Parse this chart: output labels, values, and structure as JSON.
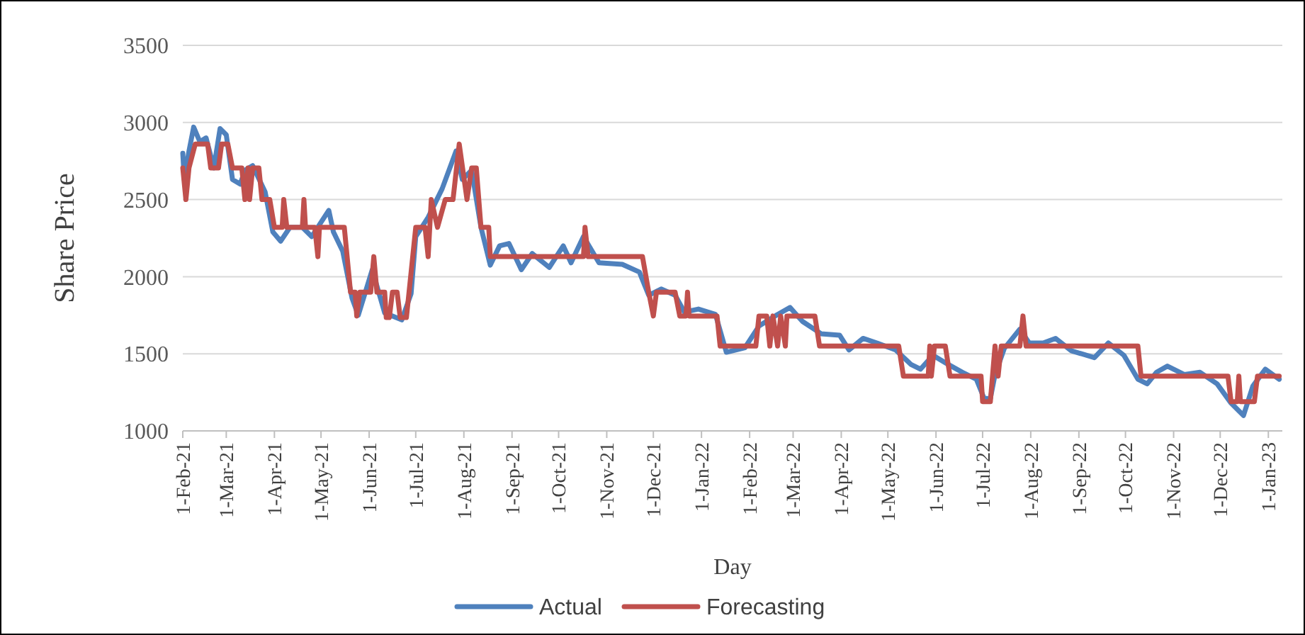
{
  "chart_data": {
    "type": "line",
    "xlabel": "Day",
    "ylabel": "Share Price",
    "xlim": [
      "2021-02-01",
      "2023-01-10"
    ],
    "ylim": [
      1000,
      3500
    ],
    "yticks": [
      1000,
      1500,
      2000,
      2500,
      3000,
      3500
    ],
    "xticks": [
      {
        "value": "2021-02-01",
        "label": "1-Feb-21"
      },
      {
        "value": "2021-03-01",
        "label": "1-Mar-21"
      },
      {
        "value": "2021-04-01",
        "label": "1-Apr-21"
      },
      {
        "value": "2021-05-01",
        "label": "1-May-21"
      },
      {
        "value": "2021-06-01",
        "label": "1-Jun-21"
      },
      {
        "value": "2021-07-01",
        "label": "1-Jul-21"
      },
      {
        "value": "2021-08-01",
        "label": "1-Aug-21"
      },
      {
        "value": "2021-09-01",
        "label": "1-Sep-21"
      },
      {
        "value": "2021-10-01",
        "label": "1-Oct-21"
      },
      {
        "value": "2021-11-01",
        "label": "1-Nov-21"
      },
      {
        "value": "2021-12-01",
        "label": "1-Dec-21"
      },
      {
        "value": "2022-01-01",
        "label": "1-Jan-22"
      },
      {
        "value": "2022-02-01",
        "label": "1-Feb-22"
      },
      {
        "value": "2022-03-01",
        "label": "1-Mar-22"
      },
      {
        "value": "2022-04-01",
        "label": "1-Apr-22"
      },
      {
        "value": "2022-05-01",
        "label": "1-May-22"
      },
      {
        "value": "2022-06-01",
        "label": "1-Jun-22"
      },
      {
        "value": "2022-07-01",
        "label": "1-Jul-22"
      },
      {
        "value": "2022-08-01",
        "label": "1-Aug-22"
      },
      {
        "value": "2022-09-01",
        "label": "1-Sep-22"
      },
      {
        "value": "2022-10-01",
        "label": "1-Oct-22"
      },
      {
        "value": "2022-11-01",
        "label": "1-Nov-22"
      },
      {
        "value": "2022-12-01",
        "label": "1-Dec-22"
      },
      {
        "value": "2023-01-01",
        "label": "1-Jan-23"
      }
    ],
    "grid": "y",
    "legend": "bottom",
    "marker": "none",
    "line_style": "solid",
    "series": [
      {
        "name": "Actual",
        "color": "#4f81bd",
        "x": [
          "2021-02-01",
          "2021-02-02",
          "2021-02-05",
          "2021-02-08",
          "2021-02-12",
          "2021-02-16",
          "2021-02-21",
          "2021-02-25",
          "2021-03-01",
          "2021-03-05",
          "2021-03-10",
          "2021-03-13",
          "2021-03-18",
          "2021-03-26",
          "2021-03-31",
          "2021-04-05",
          "2021-04-11",
          "2021-04-19",
          "2021-04-25",
          "2021-05-06",
          "2021-05-09",
          "2021-05-15",
          "2021-05-21",
          "2021-05-25",
          "2021-06-03",
          "2021-06-11",
          "2021-06-22",
          "2021-06-28",
          "2021-07-01",
          "2021-07-09",
          "2021-07-18",
          "2021-07-27",
          "2021-07-31",
          "2021-08-06",
          "2021-08-12",
          "2021-08-18",
          "2021-08-24",
          "2021-08-30",
          "2021-09-07",
          "2021-09-14",
          "2021-09-25",
          "2021-10-04",
          "2021-10-09",
          "2021-10-17",
          "2021-10-27",
          "2021-11-11",
          "2021-11-22",
          "2021-11-28",
          "2021-12-06",
          "2021-12-15",
          "2021-12-21",
          "2021-12-30",
          "2022-01-10",
          "2022-01-17",
          "2022-01-29",
          "2022-02-07",
          "2022-02-19",
          "2022-02-27",
          "2022-03-07",
          "2022-03-19",
          "2022-03-31",
          "2022-04-06",
          "2022-04-15",
          "2022-04-24",
          "2022-05-06",
          "2022-05-16",
          "2022-05-22",
          "2022-05-30",
          "2022-06-09",
          "2022-06-18",
          "2022-06-27",
          "2022-07-02",
          "2022-07-06",
          "2022-07-09",
          "2022-07-15",
          "2022-07-25",
          "2022-07-31",
          "2022-08-09",
          "2022-08-17",
          "2022-08-27",
          "2022-09-11",
          "2022-09-20",
          "2022-09-30",
          "2022-10-09",
          "2022-10-15",
          "2022-10-21",
          "2022-10-28",
          "2022-11-08",
          "2022-11-18",
          "2022-11-29",
          "2022-12-08",
          "2022-12-16",
          "2022-12-22",
          "2022-12-30",
          "2023-01-08"
        ],
        "values": [
          2800,
          2630,
          2815,
          2970,
          2875,
          2900,
          2705,
          2960,
          2920,
          2630,
          2600,
          2690,
          2720,
          2550,
          2290,
          2230,
          2320,
          2320,
          2260,
          2430,
          2290,
          2165,
          1860,
          1750,
          2045,
          1765,
          1720,
          1890,
          2260,
          2385,
          2570,
          2815,
          2630,
          2690,
          2320,
          2075,
          2200,
          2215,
          2045,
          2150,
          2060,
          2200,
          2090,
          2260,
          2090,
          2080,
          2030,
          1880,
          1920,
          1880,
          1770,
          1790,
          1755,
          1510,
          1540,
          1680,
          1755,
          1800,
          1710,
          1630,
          1620,
          1525,
          1600,
          1570,
          1525,
          1430,
          1400,
          1490,
          1430,
          1380,
          1335,
          1210,
          1210,
          1365,
          1535,
          1660,
          1570,
          1570,
          1600,
          1520,
          1475,
          1570,
          1490,
          1335,
          1305,
          1380,
          1420,
          1365,
          1380,
          1305,
          1180,
          1100,
          1290,
          1400,
          1335
        ]
      },
      {
        "name": "Forecasting",
        "color": "#c0504d",
        "x": [
          "2021-02-01",
          "2021-02-03",
          "2021-02-05",
          "2021-02-09",
          "2021-02-17",
          "2021-02-19",
          "2021-02-24",
          "2021-02-26",
          "2021-03-02",
          "2021-03-05",
          "2021-03-11",
          "2021-03-13",
          "2021-03-15",
          "2021-03-16",
          "2021-03-18",
          "2021-03-22",
          "2021-03-24",
          "2021-03-29",
          "2021-04-01",
          "2021-04-06",
          "2021-04-07",
          "2021-04-09",
          "2021-04-19",
          "2021-04-20",
          "2021-04-21",
          "2021-04-27",
          "2021-04-29",
          "2021-04-30",
          "2021-05-16",
          "2021-05-20",
          "2021-05-23",
          "2021-05-24",
          "2021-05-26",
          "2021-06-02",
          "2021-06-04",
          "2021-06-06",
          "2021-06-11",
          "2021-06-12",
          "2021-06-14",
          "2021-06-16",
          "2021-06-19",
          "2021-06-21",
          "2021-06-25",
          "2021-07-01",
          "2021-07-07",
          "2021-07-09",
          "2021-07-11",
          "2021-07-15",
          "2021-07-20",
          "2021-07-25",
          "2021-07-29",
          "2021-08-03",
          "2021-08-06",
          "2021-08-09",
          "2021-08-12",
          "2021-08-17",
          "2021-08-18",
          "2021-10-17",
          "2021-10-18",
          "2021-10-20",
          "2021-11-24",
          "2021-11-28",
          "2021-12-01",
          "2021-12-03",
          "2021-12-15",
          "2021-12-18",
          "2021-12-22",
          "2021-12-23",
          "2021-12-24",
          "2022-01-11",
          "2022-01-13",
          "2022-02-05",
          "2022-02-07",
          "2022-02-12",
          "2022-02-14",
          "2022-02-16",
          "2022-02-19",
          "2022-02-21",
          "2022-02-24",
          "2022-02-25",
          "2022-03-15",
          "2022-03-18",
          "2022-05-08",
          "2022-05-11",
          "2022-05-27",
          "2022-05-28",
          "2022-05-29",
          "2022-05-31",
          "2022-06-07",
          "2022-06-10",
          "2022-06-30",
          "2022-07-01",
          "2022-07-06",
          "2022-07-09",
          "2022-07-11",
          "2022-07-13",
          "2022-07-25",
          "2022-07-27",
          "2022-07-29",
          "2022-10-09",
          "2022-10-11",
          "2022-12-06",
          "2022-12-08",
          "2022-12-12",
          "2022-12-13",
          "2022-12-14",
          "2022-12-23",
          "2022-12-25",
          "2023-01-08"
        ],
        "values": [
          2705,
          2500,
          2705,
          2860,
          2860,
          2705,
          2705,
          2860,
          2860,
          2705,
          2705,
          2500,
          2705,
          2500,
          2705,
          2705,
          2500,
          2500,
          2320,
          2320,
          2500,
          2320,
          2320,
          2500,
          2320,
          2320,
          2130,
          2320,
          2320,
          1900,
          1900,
          1745,
          1900,
          1900,
          2130,
          1900,
          1900,
          1735,
          1735,
          1900,
          1900,
          1735,
          1735,
          2320,
          2320,
          2130,
          2500,
          2320,
          2500,
          2500,
          2860,
          2500,
          2705,
          2705,
          2320,
          2320,
          2130,
          2130,
          2320,
          2130,
          2130,
          1900,
          1745,
          1900,
          1900,
          1745,
          1745,
          1900,
          1745,
          1745,
          1550,
          1550,
          1745,
          1745,
          1550,
          1745,
          1550,
          1745,
          1550,
          1745,
          1745,
          1550,
          1550,
          1355,
          1355,
          1550,
          1355,
          1550,
          1550,
          1355,
          1355,
          1190,
          1190,
          1550,
          1355,
          1550,
          1550,
          1745,
          1550,
          1550,
          1355,
          1355,
          1190,
          1190,
          1355,
          1190,
          1190,
          1355,
          1355
        ]
      }
    ]
  }
}
